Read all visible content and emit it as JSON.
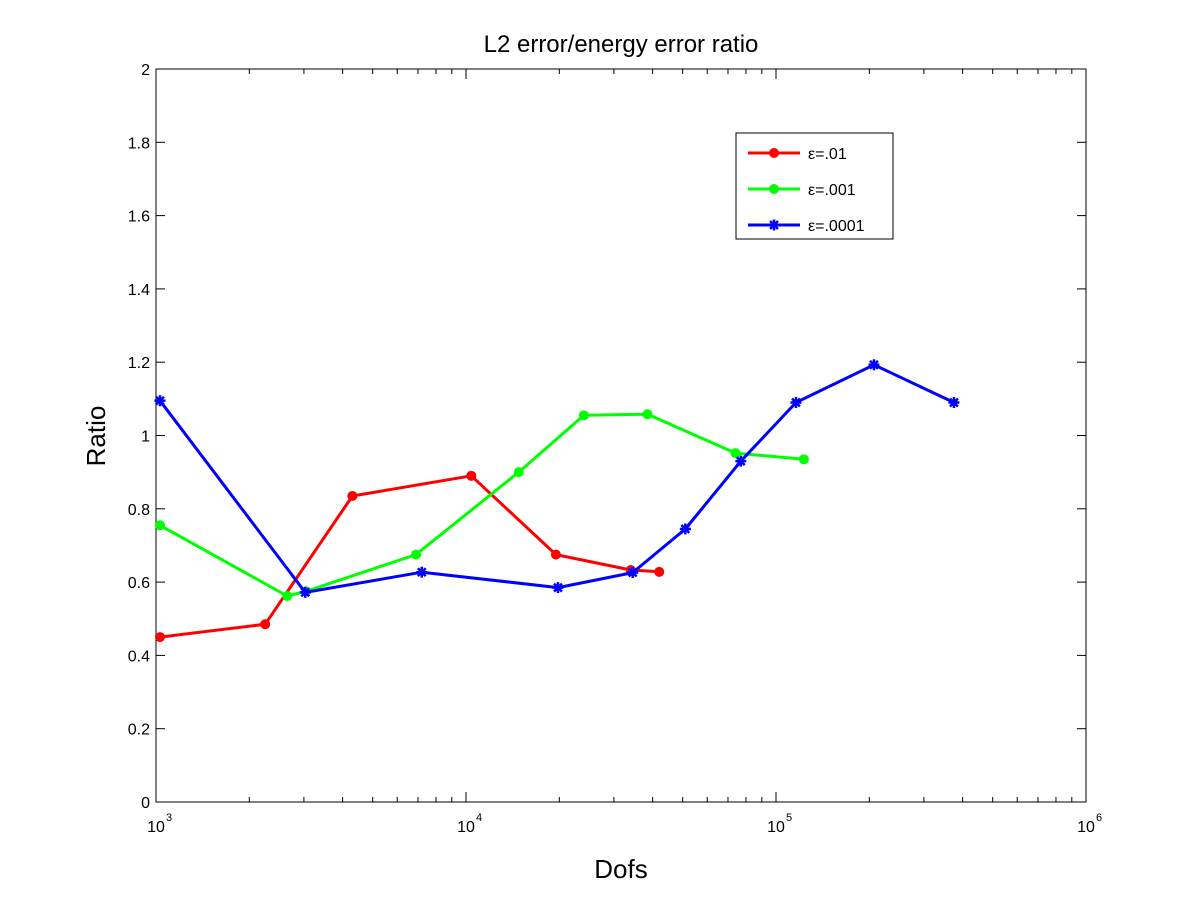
{
  "chart_data": {
    "type": "line",
    "title": "L2 error/energy error ratio",
    "xlabel": "Dofs",
    "ylabel": "Ratio",
    "xscale": "log",
    "xlim": [
      1000,
      1000000
    ],
    "ylim": [
      0,
      2
    ],
    "grid": false,
    "legend_position": "top-right",
    "x_tick_labels": [
      {
        "base": "10",
        "exp": "3",
        "value": 1000
      },
      {
        "base": "10",
        "exp": "4",
        "value": 10000
      },
      {
        "base": "10",
        "exp": "5",
        "value": 100000
      },
      {
        "base": "10",
        "exp": "6",
        "value": 1000000
      }
    ],
    "y_ticks": [
      0,
      0.2,
      0.4,
      0.6,
      0.8,
      1,
      1.2,
      1.4,
      1.6,
      1.8,
      2
    ],
    "y_tick_labels": [
      "0",
      "0.2",
      "0.4",
      "0.6",
      "0.8",
      "1",
      "1.2",
      "1.4",
      "1.6",
      "1.8",
      "2"
    ],
    "series": [
      {
        "name": "ε=.01",
        "color": "#ff0000",
        "marker": "circle",
        "points": [
          {
            "x": 1030,
            "y": 0.45
          },
          {
            "x": 2250,
            "y": 0.485
          },
          {
            "x": 4300,
            "y": 0.835
          },
          {
            "x": 10400,
            "y": 0.89
          },
          {
            "x": 19500,
            "y": 0.675
          },
          {
            "x": 34000,
            "y": 0.633
          },
          {
            "x": 42000,
            "y": 0.628
          }
        ]
      },
      {
        "name": "ε=.001",
        "color": "#00ff00",
        "marker": "circle",
        "points": [
          {
            "x": 1030,
            "y": 0.755
          },
          {
            "x": 2650,
            "y": 0.562
          },
          {
            "x": 3050,
            "y": 0.575
          },
          {
            "x": 6900,
            "y": 0.675
          },
          {
            "x": 14800,
            "y": 0.9
          },
          {
            "x": 24000,
            "y": 1.055
          },
          {
            "x": 38500,
            "y": 1.058
          },
          {
            "x": 74000,
            "y": 0.952
          },
          {
            "x": 123000,
            "y": 0.935
          }
        ]
      },
      {
        "name": "ε=.0001",
        "color": "#0000ff",
        "marker": "asterisk",
        "points": [
          {
            "x": 1030,
            "y": 1.095
          },
          {
            "x": 3030,
            "y": 0.572
          },
          {
            "x": 7200,
            "y": 0.627
          },
          {
            "x": 19800,
            "y": 0.585
          },
          {
            "x": 34500,
            "y": 0.626
          },
          {
            "x": 51000,
            "y": 0.745
          },
          {
            "x": 77000,
            "y": 0.93
          },
          {
            "x": 116000,
            "y": 1.09
          },
          {
            "x": 207000,
            "y": 1.193
          },
          {
            "x": 375000,
            "y": 1.09
          }
        ]
      }
    ]
  }
}
